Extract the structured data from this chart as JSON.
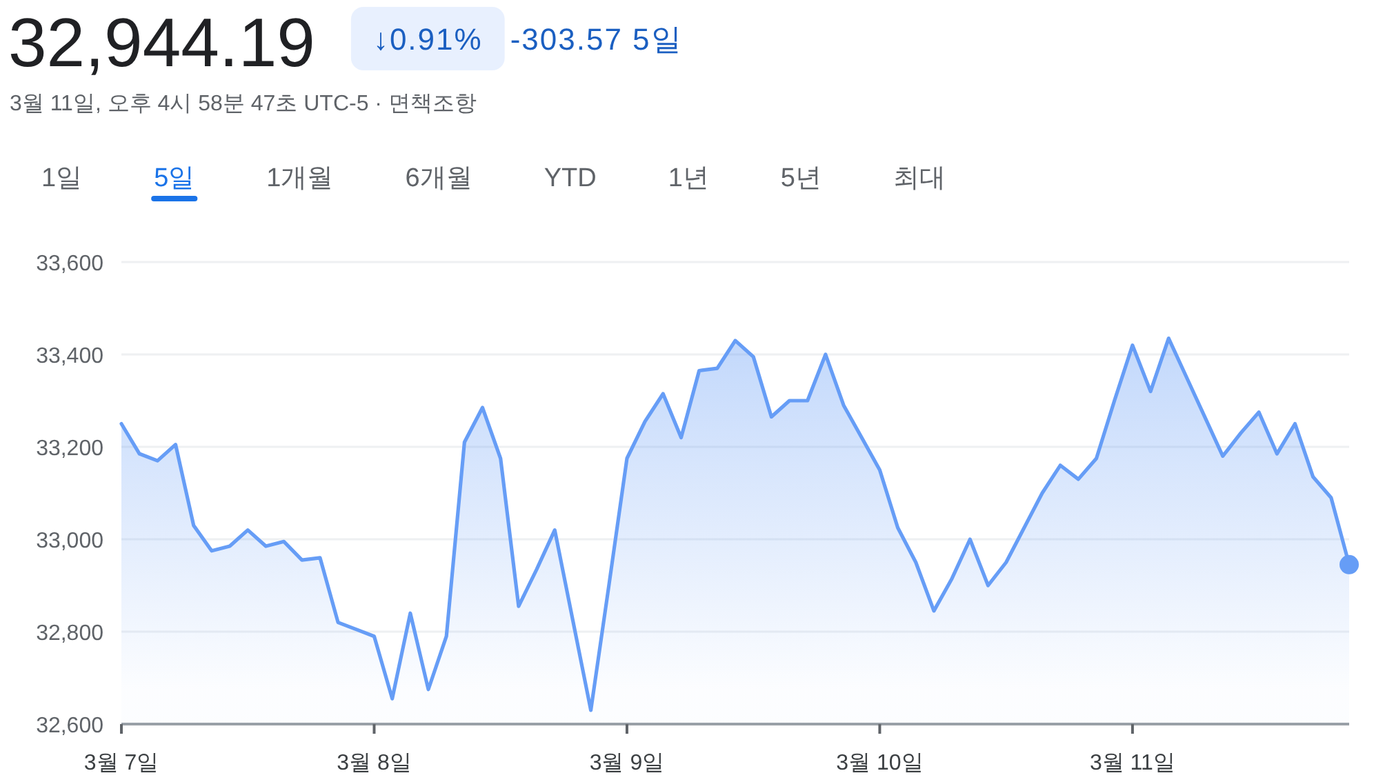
{
  "chart_data": {
    "type": "area",
    "title": "32,944.19",
    "subtitle": "3월 11일, 오후 4시 58분 47초 UTC-5 · 면책조항",
    "annotations": [
      "↓0.91%",
      "-303.57 5일",
      "1일",
      "5일",
      "1개월",
      "6개월",
      "YTD",
      "1년",
      "5년",
      "최대"
    ],
    "categories": [
      "3월 7일",
      null,
      null,
      null,
      null,
      null,
      null,
      null,
      null,
      null,
      null,
      null,
      null,
      null,
      "3월 8일",
      null,
      null,
      null,
      null,
      null,
      null,
      null,
      null,
      null,
      null,
      null,
      null,
      null,
      "3월 9일",
      null,
      null,
      null,
      null,
      null,
      null,
      null,
      null,
      null,
      null,
      null,
      null,
      null,
      "3월 10일",
      null,
      null,
      null,
      null,
      null,
      null,
      null,
      null,
      null,
      null,
      null,
      null,
      null,
      "3월 11일",
      null,
      null,
      null,
      null,
      null,
      null,
      null,
      null,
      null,
      null,
      null,
      null
    ],
    "series": [
      {
        "color": "#669df6",
        "values": [
          33250,
          33185,
          33170,
          33205,
          33030,
          32975,
          32985,
          33020,
          32985,
          32995,
          32955,
          32960,
          32820,
          32805,
          32790,
          32655,
          32840,
          32675,
          32790,
          33210,
          33285,
          33175,
          32855,
          32935,
          33020,
          32825,
          32630,
          32900,
          33175,
          33255,
          33315,
          33220,
          33365,
          33370,
          33430,
          33395,
          33265,
          33300,
          33300,
          33400,
          33290,
          33220,
          33150,
          33025,
          32950,
          32845,
          32915,
          33000,
          32900,
          32950,
          33025,
          33100,
          33160,
          33130,
          33175,
          33300,
          33420,
          33320,
          33435,
          33350,
          33265,
          33180,
          33230,
          33275,
          33185,
          33250,
          33135,
          33090,
          32945
        ]
      },
      {
        "type": "scatter",
        "color": "#669df6",
        "values": [
          null,
          null,
          null,
          null,
          null,
          null,
          null,
          null,
          null,
          null,
          null,
          null,
          null,
          null,
          null,
          null,
          null,
          null,
          null,
          null,
          null,
          null,
          null,
          null,
          null,
          null,
          null,
          null,
          null,
          null,
          null,
          null,
          null,
          null,
          null,
          null,
          null,
          null,
          null,
          null,
          null,
          null,
          null,
          null,
          null,
          null,
          null,
          null,
          null,
          null,
          null,
          null,
          null,
          null,
          null,
          null,
          null,
          null,
          null,
          null,
          null,
          null,
          null,
          null,
          null,
          null,
          null,
          null,
          32945
        ]
      }
    ],
    "ylim": [
      32600,
      33600
    ],
    "yticks": [
      {
        "value": 32600,
        "label": "32,600"
      },
      {
        "value": 32800,
        "label": "32,800"
      },
      {
        "value": 33000,
        "label": "33,000"
      },
      {
        "value": 33200,
        "label": "33,200"
      },
      {
        "value": 33400,
        "label": "33,400"
      },
      {
        "value": 33600,
        "label": "33,600"
      }
    ],
    "grid": "y",
    "line_style": "solid"
  }
}
